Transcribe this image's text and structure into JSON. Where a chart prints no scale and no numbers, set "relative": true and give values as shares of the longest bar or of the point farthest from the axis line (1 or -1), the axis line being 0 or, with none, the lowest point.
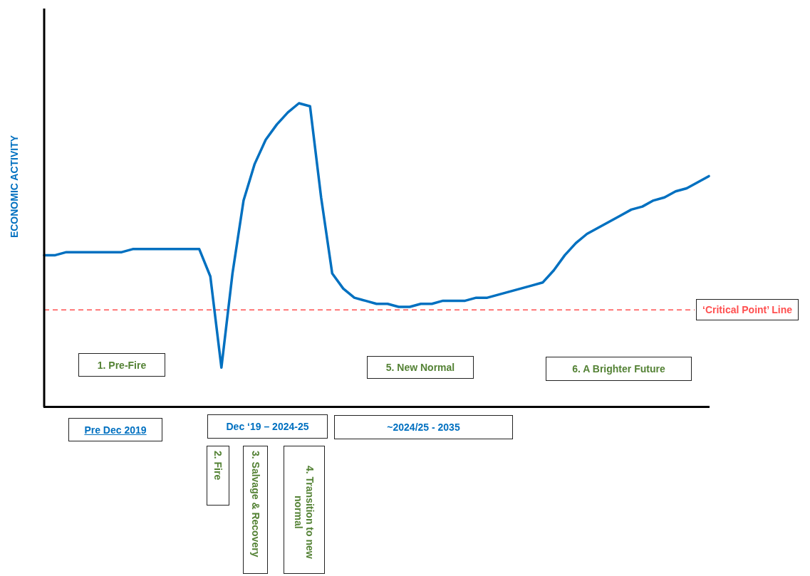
{
  "chart_data": {
    "type": "line",
    "ylabel": "ECONOMIC ACTIVITY",
    "relative": true,
    "marker": "none",
    "line_style": "solid",
    "categories": [
      null,
      null,
      null,
      null,
      null,
      null,
      null,
      null,
      null,
      null,
      null,
      null,
      null,
      null,
      null,
      null,
      null,
      null,
      null,
      null,
      null,
      null,
      null,
      null,
      null,
      null,
      null,
      null,
      null,
      null,
      null,
      null,
      null,
      null,
      null,
      null,
      null,
      null,
      null,
      null,
      null,
      null,
      null,
      null,
      null,
      null,
      null,
      null,
      null,
      null,
      null,
      null,
      null,
      null,
      null,
      null,
      null,
      null,
      null,
      null,
      null
    ],
    "series": [
      {
        "color": "#0070c0",
        "values": [
          0.5,
          0.5,
          0.51,
          0.51,
          0.51,
          0.51,
          0.51,
          0.51,
          0.52,
          0.52,
          0.52,
          0.52,
          0.52,
          0.52,
          0.52,
          0.43,
          0.13,
          0.44,
          0.68,
          0.8,
          0.88,
          0.93,
          0.97,
          1.0,
          0.99,
          0.69,
          0.44,
          0.39,
          0.36,
          0.35,
          0.34,
          0.34,
          0.33,
          0.33,
          0.34,
          0.34,
          0.35,
          0.35,
          0.35,
          0.36,
          0.36,
          0.37,
          0.38,
          0.39,
          0.4,
          0.41,
          0.45,
          0.5,
          0.54,
          0.57,
          0.59,
          0.61,
          0.63,
          0.65,
          0.66,
          0.68,
          0.69,
          0.71,
          0.72,
          0.74,
          0.76
        ]
      }
    ],
    "ref_lines": [
      {
        "axis": "y",
        "value": 0.32,
        "label": "‘Critical Point’ Line",
        "color": "#ff5050",
        "line_style": "dashed"
      }
    ],
    "annotations": [
      "1. Pre-Fire",
      "5. New Normal",
      "6. A Brighter Future",
      "Pre Dec 2019",
      "Dec ‘19 – 2024-25",
      "~2024/25 - 2035",
      "2. Fire",
      "3. Salvage & Recovery",
      "4. Transition to new normal"
    ]
  }
}
